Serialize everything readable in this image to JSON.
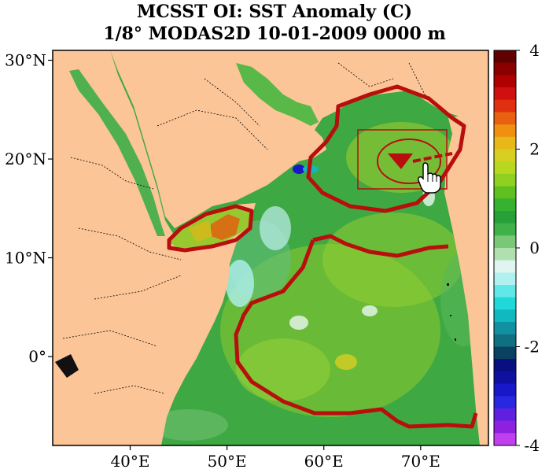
{
  "title": {
    "line1": "MCSST OI:  SST Anomaly (C)",
    "line2": "1/8° MODAS2D 10-01-2009 0000 m"
  },
  "map": {
    "lat_labels": [
      "30°N",
      "20°N",
      "10°N",
      "0°"
    ],
    "lon_labels": [
      "40°E",
      "50°E",
      "60°E",
      "70°E"
    ],
    "lat_values": [
      30,
      20,
      10,
      0
    ],
    "lon_values": [
      40,
      50,
      60,
      70
    ],
    "lat_range": [
      -9,
      31
    ],
    "lon_range": [
      32,
      77
    ],
    "colors": {
      "land": "#fbc597",
      "ocean_dominant": "#3ea842",
      "outline": "#b80e0e",
      "border": "#000000"
    },
    "annotations": [
      "warm-anomaly-outline-arabian-sea",
      "warm-anomaly-outline-gulf-of-aden",
      "large-region-outline-indian-ocean",
      "zoom-box",
      "hand-cursor-icon"
    ]
  },
  "colorbar": {
    "labels": [
      "4",
      "2",
      "0",
      "-2",
      "-4"
    ],
    "values": [
      4,
      2,
      0,
      -2,
      -4
    ],
    "range": [
      -4,
      4
    ],
    "colors": [
      "#600000",
      "#8a0000",
      "#b00000",
      "#d01010",
      "#e03010",
      "#e86010",
      "#f09010",
      "#e8b818",
      "#d8d020",
      "#b8d820",
      "#90d020",
      "#60c020",
      "#38b030",
      "#28a038",
      "#40b048",
      "#78c878",
      "#b0e0b0",
      "#e0f4f0",
      "#b0f0f0",
      "#60e8e8",
      "#20d8d8",
      "#10b8c0",
      "#1090a0",
      "#107080",
      "#0a4060",
      "#081080",
      "#1010a0",
      "#1818c8",
      "#2828e0",
      "#6020e0",
      "#9020e0",
      "#c040f0"
    ]
  }
}
